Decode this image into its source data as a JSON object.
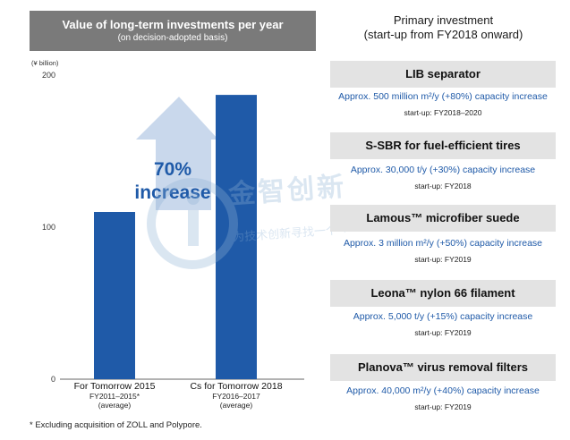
{
  "chart_data": {
    "type": "bar",
    "title": "Value of long-term investments per year",
    "subtitle": "(on decision-adopted basis)",
    "ylabel": "(¥ billion)",
    "ylim": [
      0,
      200
    ],
    "yticks": [
      "0",
      "100",
      "200"
    ],
    "categories": [
      {
        "name": "For Tomorrow 2015",
        "period": "FY2011–2015*",
        "note": "(average)"
      },
      {
        "name": "Cs for Tomorrow 2018",
        "period": "FY2016–2017",
        "note": "(average)"
      }
    ],
    "values": [
      110,
      187
    ],
    "annotation": {
      "line1": "70%",
      "line2": "increase"
    },
    "colors": {
      "bar": "#1f5aa8",
      "arrow": "#c9d8ec",
      "annotation_text": "#1f5aa8"
    },
    "grid": false
  },
  "footnote": "* Excluding acquisition of ZOLL and Polypore.",
  "primary": {
    "title_line1": "Primary investment",
    "title_line2": "(start-up from FY2018 onward)",
    "items": [
      {
        "name": "LIB separator",
        "capacity": "Approx. 500 million m²/y (+80%) capacity increase",
        "startup": "start-up: FY2018–2020"
      },
      {
        "name": "S-SBR for fuel-efficient tires",
        "capacity": "Approx. 30,000 t/y (+30%) capacity increase",
        "startup": "start-up: FY2018"
      },
      {
        "name": "Lamous™ microfiber suede",
        "capacity": "Approx. 3 million m²/y (+50%) capacity increase",
        "startup": "start-up: FY2019"
      },
      {
        "name": "Leona™ nylon 66 filament",
        "capacity": "Approx. 5,000 t/y (+15%) capacity increase",
        "startup": "start-up: FY2019"
      },
      {
        "name": "Planova™ virus removal filters",
        "capacity": "Approx. 40,000 m²/y (+40%) capacity increase",
        "startup": "start-up: FY2019"
      }
    ]
  },
  "watermark": {
    "main": "金智创新",
    "sub": "为技术创新寻找一个“+”"
  }
}
